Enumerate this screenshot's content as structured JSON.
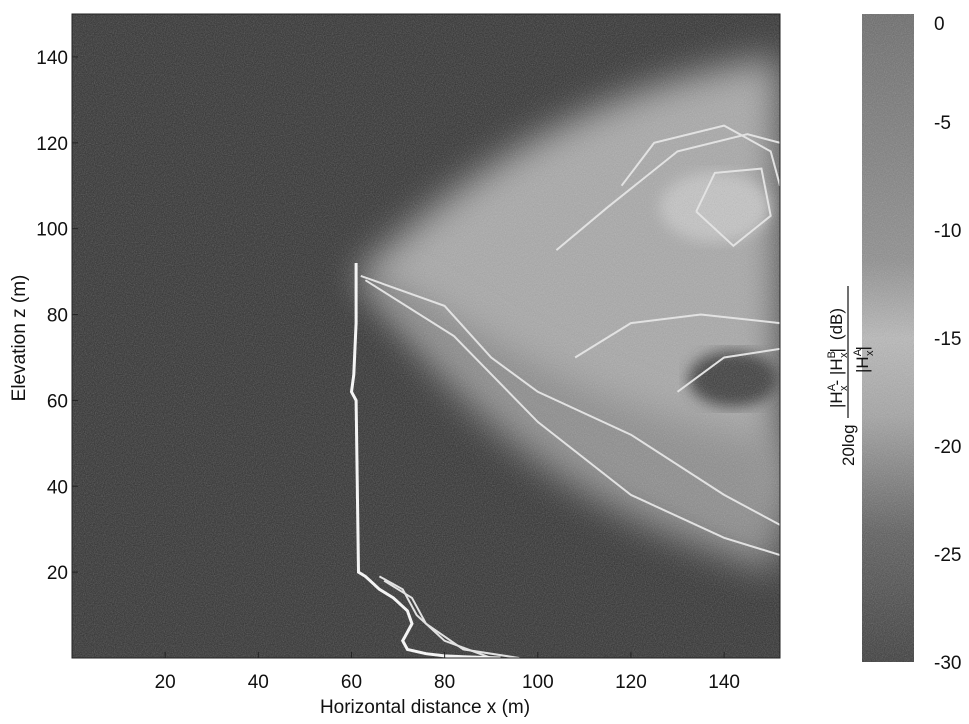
{
  "chart_data": {
    "type": "heatmap",
    "title": "",
    "xlabel": "Horizontal distance x (m)",
    "ylabel": "Elevation z (m)",
    "xlim": [
      0,
      152
    ],
    "ylim": [
      0,
      150
    ],
    "x_ticks": [
      20,
      40,
      60,
      80,
      100,
      120,
      140
    ],
    "y_ticks": [
      20,
      40,
      60,
      80,
      100,
      120,
      140
    ],
    "grid": false,
    "colorbar": {
      "range": [
        -30,
        0
      ],
      "ticks": [
        0,
        -5,
        -10,
        -15,
        -20,
        -25,
        -30
      ],
      "label_prefix": "20log",
      "label_numerator": "|H",
      "label_denominator": "|H",
      "label_unit": "(dB)",
      "sup_a": "A",
      "sup_b": "B",
      "sub_x": "x",
      "dash": "- ",
      "bar": "|",
      "colormap": "grayscale, dark = -30 dB, light = high"
    },
    "features": {
      "structure_outline_x": [
        61,
        61,
        60.5,
        60,
        61,
        61.5,
        63,
        64,
        66,
        69,
        72,
        73,
        72,
        71,
        72,
        76,
        80,
        84,
        92
      ],
      "structure_outline_z": [
        92,
        78,
        66,
        62,
        60,
        20,
        19,
        18,
        16,
        14,
        11,
        8,
        6,
        4,
        2,
        1,
        0.5,
        0.3,
        0
      ]
    }
  }
}
